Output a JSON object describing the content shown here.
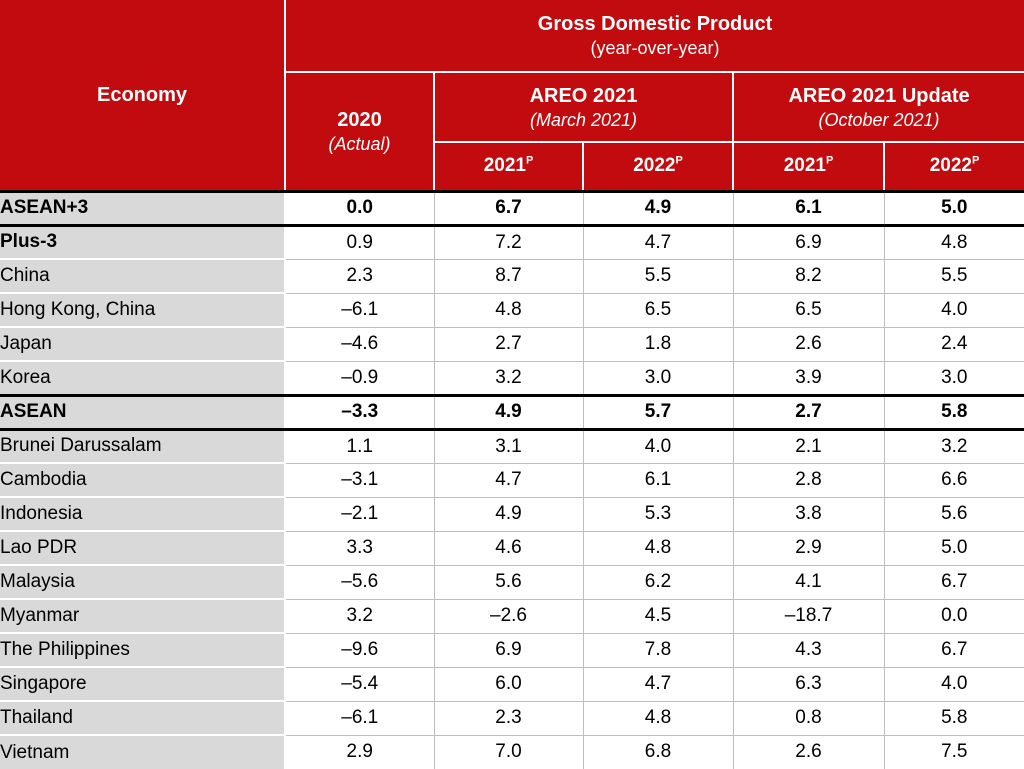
{
  "colors": {
    "header_red": "#C20B0E",
    "label_gray": "#D9D9D9",
    "grid_gray": "#BFBFBF",
    "thick_border_black": "#000000",
    "header_text_white": "#FFFFFF",
    "body_text_black": "#000000"
  },
  "header": {
    "economy": "Economy",
    "gdp_title": "Gross Domestic Product",
    "gdp_sub": "(year-over-year)",
    "y2020": "2020",
    "y2020_sub": "(Actual)",
    "areo_march": "AREO 2021",
    "areo_march_sub": "(March 2021)",
    "areo_update": "AREO 2021 Update",
    "areo_update_sub": "(October 2021)",
    "subcols": [
      {
        "year": "2021",
        "sup": "P"
      },
      {
        "year": "2022",
        "sup": "P"
      },
      {
        "year": "2021",
        "sup": "P"
      },
      {
        "year": "2022",
        "sup": "P"
      }
    ]
  },
  "table": {
    "rows": [
      {
        "name": "ASEAN+3",
        "indent": 0,
        "style": "total",
        "thick_bottom": true,
        "values": [
          "0.0",
          "6.7",
          "4.9",
          "6.1",
          "5.0"
        ]
      },
      {
        "name": "Plus-3",
        "indent": 1,
        "style": "group",
        "values": [
          "0.9",
          "7.2",
          "4.7",
          "6.9",
          "4.8"
        ]
      },
      {
        "name": "China",
        "indent": 2,
        "style": "country",
        "values": [
          "2.3",
          "8.7",
          "5.5",
          "8.2",
          "5.5"
        ]
      },
      {
        "name": "Hong Kong, China",
        "indent": 2,
        "style": "country",
        "values": [
          "–6.1",
          "4.8",
          "6.5",
          "6.5",
          "4.0"
        ]
      },
      {
        "name": "Japan",
        "indent": 2,
        "style": "country",
        "values": [
          "–4.6",
          "2.7",
          "1.8",
          "2.6",
          "2.4"
        ]
      },
      {
        "name": "Korea",
        "indent": 2,
        "style": "country",
        "values": [
          "–0.9",
          "3.2",
          "3.0",
          "3.9",
          "3.0"
        ]
      },
      {
        "name": "ASEAN",
        "indent": 1,
        "style": "total",
        "thick_top": true,
        "thick_bottom": true,
        "values": [
          "–3.3",
          "4.9",
          "5.7",
          "2.7",
          "5.8"
        ]
      },
      {
        "name": "Brunei Darussalam",
        "indent": 2,
        "style": "country",
        "values": [
          "1.1",
          "3.1",
          "4.0",
          "2.1",
          "3.2"
        ]
      },
      {
        "name": "Cambodia",
        "indent": 2,
        "style": "country",
        "values": [
          "–3.1",
          "4.7",
          "6.1",
          "2.8",
          "6.6"
        ]
      },
      {
        "name": "Indonesia",
        "indent": 2,
        "style": "country",
        "values": [
          "–2.1",
          "4.9",
          "5.3",
          "3.8",
          "5.6"
        ]
      },
      {
        "name": "Lao PDR",
        "indent": 2,
        "style": "country",
        "values": [
          "3.3",
          "4.6",
          "4.8",
          "2.9",
          "5.0"
        ]
      },
      {
        "name": "Malaysia",
        "indent": 2,
        "style": "country",
        "values": [
          "–5.6",
          "5.6",
          "6.2",
          "4.1",
          "6.7"
        ]
      },
      {
        "name": "Myanmar",
        "indent": 2,
        "style": "country",
        "values": [
          "3.2",
          "–2.6",
          "4.5",
          "–18.7",
          "0.0"
        ]
      },
      {
        "name": "The Philippines",
        "indent": 2,
        "style": "country",
        "values": [
          "–9.6",
          "6.9",
          "7.8",
          "4.3",
          "6.7"
        ]
      },
      {
        "name": "Singapore",
        "indent": 2,
        "style": "country",
        "values": [
          "–5.4",
          "6.0",
          "4.7",
          "6.3",
          "4.0"
        ]
      },
      {
        "name": "Thailand",
        "indent": 2,
        "style": "country",
        "values": [
          "–6.1",
          "2.3",
          "4.8",
          "0.8",
          "5.8"
        ]
      },
      {
        "name": "Vietnam",
        "indent": 2,
        "style": "country",
        "values": [
          "2.9",
          "7.0",
          "6.8",
          "2.6",
          "7.5"
        ]
      }
    ]
  },
  "chart_data": {
    "type": "table",
    "title": "Gross Domestic Product (year-over-year)",
    "columns": [
      "Economy",
      "2020 (Actual)",
      "AREO 2021 (March 2021) 2021p",
      "AREO 2021 (March 2021) 2022p",
      "AREO 2021 Update (October 2021) 2021p",
      "AREO 2021 Update (October 2021) 2022p"
    ],
    "rows": [
      [
        "ASEAN+3",
        0.0,
        6.7,
        4.9,
        6.1,
        5.0
      ],
      [
        "Plus-3",
        0.9,
        7.2,
        4.7,
        6.9,
        4.8
      ],
      [
        "China",
        2.3,
        8.7,
        5.5,
        8.2,
        5.5
      ],
      [
        "Hong Kong, China",
        -6.1,
        4.8,
        6.5,
        6.5,
        4.0
      ],
      [
        "Japan",
        -4.6,
        2.7,
        1.8,
        2.6,
        2.4
      ],
      [
        "Korea",
        -0.9,
        3.2,
        3.0,
        3.9,
        3.0
      ],
      [
        "ASEAN",
        -3.3,
        4.9,
        5.7,
        2.7,
        5.8
      ],
      [
        "Brunei Darussalam",
        1.1,
        3.1,
        4.0,
        2.1,
        3.2
      ],
      [
        "Cambodia",
        -3.1,
        4.7,
        6.1,
        2.8,
        6.6
      ],
      [
        "Indonesia",
        -2.1,
        4.9,
        5.3,
        3.8,
        5.6
      ],
      [
        "Lao PDR",
        3.3,
        4.6,
        4.8,
        2.9,
        5.0
      ],
      [
        "Malaysia",
        -5.6,
        5.6,
        6.2,
        4.1,
        6.7
      ],
      [
        "Myanmar",
        3.2,
        -2.6,
        4.5,
        -18.7,
        0.0
      ],
      [
        "The Philippines",
        -9.6,
        6.9,
        7.8,
        4.3,
        6.7
      ],
      [
        "Singapore",
        -5.4,
        6.0,
        4.7,
        6.3,
        4.0
      ],
      [
        "Thailand",
        -6.1,
        2.3,
        4.8,
        0.8,
        5.8
      ],
      [
        "Vietnam",
        2.9,
        7.0,
        6.8,
        2.6,
        7.5
      ]
    ]
  }
}
